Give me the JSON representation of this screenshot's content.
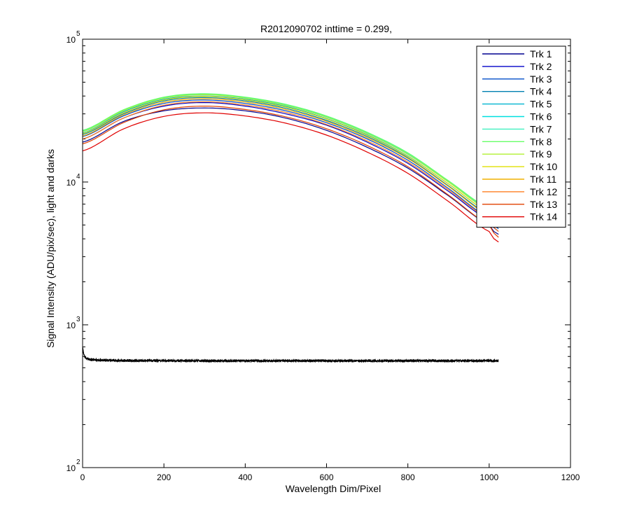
{
  "chart_data": {
    "type": "line",
    "title": "R2012090702 inttime = 0.299,",
    "xlabel": "Wavelength Dim/Pixel",
    "ylabel": "Signal Intensity (ADU/pix/sec), light and darks",
    "xlim": [
      0,
      1200
    ],
    "ylim": [
      100,
      100000
    ],
    "yscale": "log",
    "xticks": [
      "0",
      "200",
      "400",
      "600",
      "800",
      "1000",
      "1200"
    ],
    "yticks": [
      {
        "base": "10",
        "exp": "2"
      },
      {
        "base": "10",
        "exp": "3"
      },
      {
        "base": "10",
        "exp": "4"
      },
      {
        "base": "10",
        "exp": "5"
      }
    ],
    "legend_position": "top-right",
    "x": [
      0,
      100,
      200,
      300,
      400,
      500,
      600,
      700,
      800,
      900,
      1000,
      1023
    ],
    "series": [
      {
        "name": "Trk 1",
        "color": "#00008f",
        "values": [
          19000,
          26500,
          31500,
          33000,
          31500,
          28000,
          23000,
          17500,
          12500,
          8000,
          5000,
          4300
        ]
      },
      {
        "name": "Trk 2",
        "color": "#0000c8",
        "values": [
          20000,
          28000,
          34000,
          36000,
          34000,
          30000,
          25000,
          19000,
          13500,
          8600,
          5400,
          4500
        ]
      },
      {
        "name": "Trk 3",
        "color": "#004cc8",
        "values": [
          20800,
          29000,
          35500,
          37500,
          35500,
          31500,
          26000,
          20000,
          14200,
          9000,
          5600,
          4700
        ]
      },
      {
        "name": "Trk 4",
        "color": "#007fb0",
        "values": [
          21500,
          30000,
          37000,
          39000,
          37000,
          32800,
          27000,
          20800,
          14800,
          9400,
          5900,
          4900
        ]
      },
      {
        "name": "Trk 5",
        "color": "#00b3d0",
        "values": [
          22000,
          31000,
          38000,
          40000,
          38000,
          33800,
          27800,
          21400,
          15200,
          9700,
          6100,
          5000
        ]
      },
      {
        "name": "Trk 6",
        "color": "#00e0e0",
        "values": [
          22500,
          31500,
          38700,
          41000,
          38800,
          34500,
          28400,
          21900,
          15600,
          10000,
          6300,
          5200
        ]
      },
      {
        "name": "Trk 7",
        "color": "#40f0c0",
        "values": [
          22800,
          31800,
          39000,
          41300,
          39100,
          34800,
          28700,
          22100,
          15800,
          10100,
          6400,
          5300
        ]
      },
      {
        "name": "Trk 8",
        "color": "#66ff66",
        "values": [
          23000,
          32000,
          39300,
          41500,
          39300,
          35000,
          29000,
          22300,
          16000,
          10200,
          6500,
          5400
        ]
      },
      {
        "name": "Trk 9",
        "color": "#b0f030",
        "values": [
          22500,
          31500,
          38600,
          40800,
          38600,
          34300,
          28400,
          21800,
          15600,
          10000,
          6300,
          5200
        ]
      },
      {
        "name": "Trk 10",
        "color": "#e0e000",
        "values": [
          21800,
          30500,
          37500,
          39700,
          37600,
          33400,
          27600,
          21200,
          15100,
          9700,
          6100,
          5000
        ]
      },
      {
        "name": "Trk 11",
        "color": "#f0b000",
        "values": [
          21000,
          29500,
          36200,
          38300,
          36300,
          32200,
          26600,
          20400,
          14600,
          9300,
          5800,
          4800
        ]
      },
      {
        "name": "Trk 12",
        "color": "#ff7f20",
        "values": [
          20000,
          28000,
          34500,
          36500,
          34600,
          30700,
          25300,
          19400,
          13800,
          8800,
          5500,
          4500
        ]
      },
      {
        "name": "Trk 13",
        "color": "#e04000",
        "values": [
          18500,
          26000,
          32000,
          34000,
          32200,
          28600,
          23600,
          18000,
          12800,
          8100,
          5000,
          4100
        ]
      },
      {
        "name": "Trk 14",
        "color": "#e00000",
        "values": [
          16500,
          23500,
          28800,
          30500,
          29000,
          25800,
          21300,
          16200,
          11500,
          7300,
          4500,
          3800
        ]
      }
    ],
    "dark": {
      "color": "#000000",
      "x": [
        0,
        2,
        5,
        10,
        20,
        50,
        100,
        300,
        600,
        900,
        1023
      ],
      "values": [
        700,
        640,
        600,
        580,
        570,
        565,
        562,
        560,
        560,
        560,
        560
      ]
    }
  }
}
